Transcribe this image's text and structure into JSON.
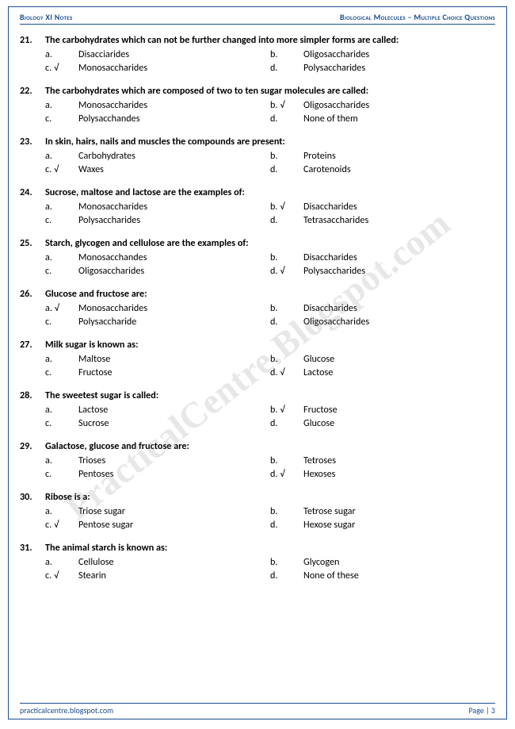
{
  "header": {
    "left": "Biology XI Notes",
    "right": "Biological Molecules – Multiple Choice Questions"
  },
  "footer": {
    "left": "practicalcentre.blogspot.com",
    "right": "Page | 3"
  },
  "watermark": "PracticalCentre.Blogspot.com",
  "check": "√",
  "questions": [
    {
      "num": "21.",
      "text": "The carbohydrates which can not be further changed into more simpler forms are called:",
      "options": [
        {
          "letter": "a.",
          "text": "Disacciarides",
          "correct": false
        },
        {
          "letter": "b.",
          "text": "Oligosaccharides",
          "correct": false
        },
        {
          "letter": "c.",
          "text": "Monosaccharides",
          "correct": true
        },
        {
          "letter": "d.",
          "text": "Polysaccharides",
          "correct": false
        }
      ]
    },
    {
      "num": "22.",
      "text": "The carbohydrates which are composed of two to ten sugar molecules are called:",
      "options": [
        {
          "letter": "a.",
          "text": "Monosaccharides",
          "correct": false
        },
        {
          "letter": "b.",
          "text": "Oligosaccharides",
          "correct": true
        },
        {
          "letter": "c.",
          "text": "Polysacchandes",
          "correct": false
        },
        {
          "letter": "d.",
          "text": "None of them",
          "correct": false
        }
      ]
    },
    {
      "num": "23.",
      "text": "In skin, hairs, nails and muscles the compounds are present:",
      "options": [
        {
          "letter": "a.",
          "text": "Carbohydrates",
          "correct": false
        },
        {
          "letter": "b.",
          "text": "Proteins",
          "correct": false
        },
        {
          "letter": "c.",
          "text": "Waxes",
          "correct": true
        },
        {
          "letter": "d.",
          "text": "Carotenoids",
          "correct": false
        }
      ]
    },
    {
      "num": "24.",
      "text": "Sucrose, maltose and lactose are the examples of:",
      "options": [
        {
          "letter": "a.",
          "text": "Monosaccharides",
          "correct": false
        },
        {
          "letter": "b.",
          "text": "Disaccharides",
          "correct": true
        },
        {
          "letter": "c.",
          "text": "Polysaccharides",
          "correct": false
        },
        {
          "letter": "d.",
          "text": "Tetrasaccharides",
          "correct": false
        }
      ]
    },
    {
      "num": "25.",
      "text": "Starch, glycogen and cellulose are the examples of:",
      "options": [
        {
          "letter": "a.",
          "text": "Monosacchandes",
          "correct": false
        },
        {
          "letter": "b.",
          "text": "Disaccharides",
          "correct": false
        },
        {
          "letter": "c.",
          "text": "Oligosaccharides",
          "correct": false
        },
        {
          "letter": "d.",
          "text": "Polysaccharides",
          "correct": true
        }
      ]
    },
    {
      "num": "26.",
      "text": "Glucose and fructose are:",
      "options": [
        {
          "letter": "a.",
          "text": "Monosaccharides",
          "correct": true
        },
        {
          "letter": "b.",
          "text": "Disaccharides",
          "correct": false
        },
        {
          "letter": "c.",
          "text": "Polysaccharide",
          "correct": false
        },
        {
          "letter": "d.",
          "text": "Oligosaccharides",
          "correct": false
        }
      ]
    },
    {
      "num": "27.",
      "text": "Milk sugar is known as:",
      "options": [
        {
          "letter": "a.",
          "text": "Maltose",
          "correct": false
        },
        {
          "letter": "b.",
          "text": "Glucose",
          "correct": false
        },
        {
          "letter": "c.",
          "text": "Fructose",
          "correct": false
        },
        {
          "letter": "d.",
          "text": "Lactose",
          "correct": true
        }
      ]
    },
    {
      "num": "28.",
      "text": "The sweetest sugar is called:",
      "options": [
        {
          "letter": "a.",
          "text": "Lactose",
          "correct": false
        },
        {
          "letter": "b.",
          "text": "Fructose",
          "correct": true
        },
        {
          "letter": "c.",
          "text": "Sucrose",
          "correct": false
        },
        {
          "letter": "d.",
          "text": "Glucose",
          "correct": false
        }
      ]
    },
    {
      "num": "29.",
      "text": "Galactose, glucose and fructose are:",
      "options": [
        {
          "letter": "a.",
          "text": "Trioses",
          "correct": false
        },
        {
          "letter": "b.",
          "text": "Tetroses",
          "correct": false
        },
        {
          "letter": "c.",
          "text": "Pentoses",
          "correct": false
        },
        {
          "letter": "d.",
          "text": "Hexoses",
          "correct": true
        }
      ]
    },
    {
      "num": "30.",
      "text": "Ribose is a:",
      "options": [
        {
          "letter": "a.",
          "text": "Triose sugar",
          "correct": false
        },
        {
          "letter": "b.",
          "text": "Tetrose sugar",
          "correct": false
        },
        {
          "letter": "c.",
          "text": "Pentose sugar",
          "correct": true
        },
        {
          "letter": "d.",
          "text": "Hexose sugar",
          "correct": false
        }
      ]
    },
    {
      "num": "31.",
      "text": "The animal starch is known as:",
      "options": [
        {
          "letter": "a.",
          "text": "Cellulose",
          "correct": false
        },
        {
          "letter": "b.",
          "text": "Glycogen",
          "correct": false
        },
        {
          "letter": "c.",
          "text": "Stearin",
          "correct": true
        },
        {
          "letter": "d.",
          "text": "None of these",
          "correct": false
        }
      ]
    }
  ]
}
